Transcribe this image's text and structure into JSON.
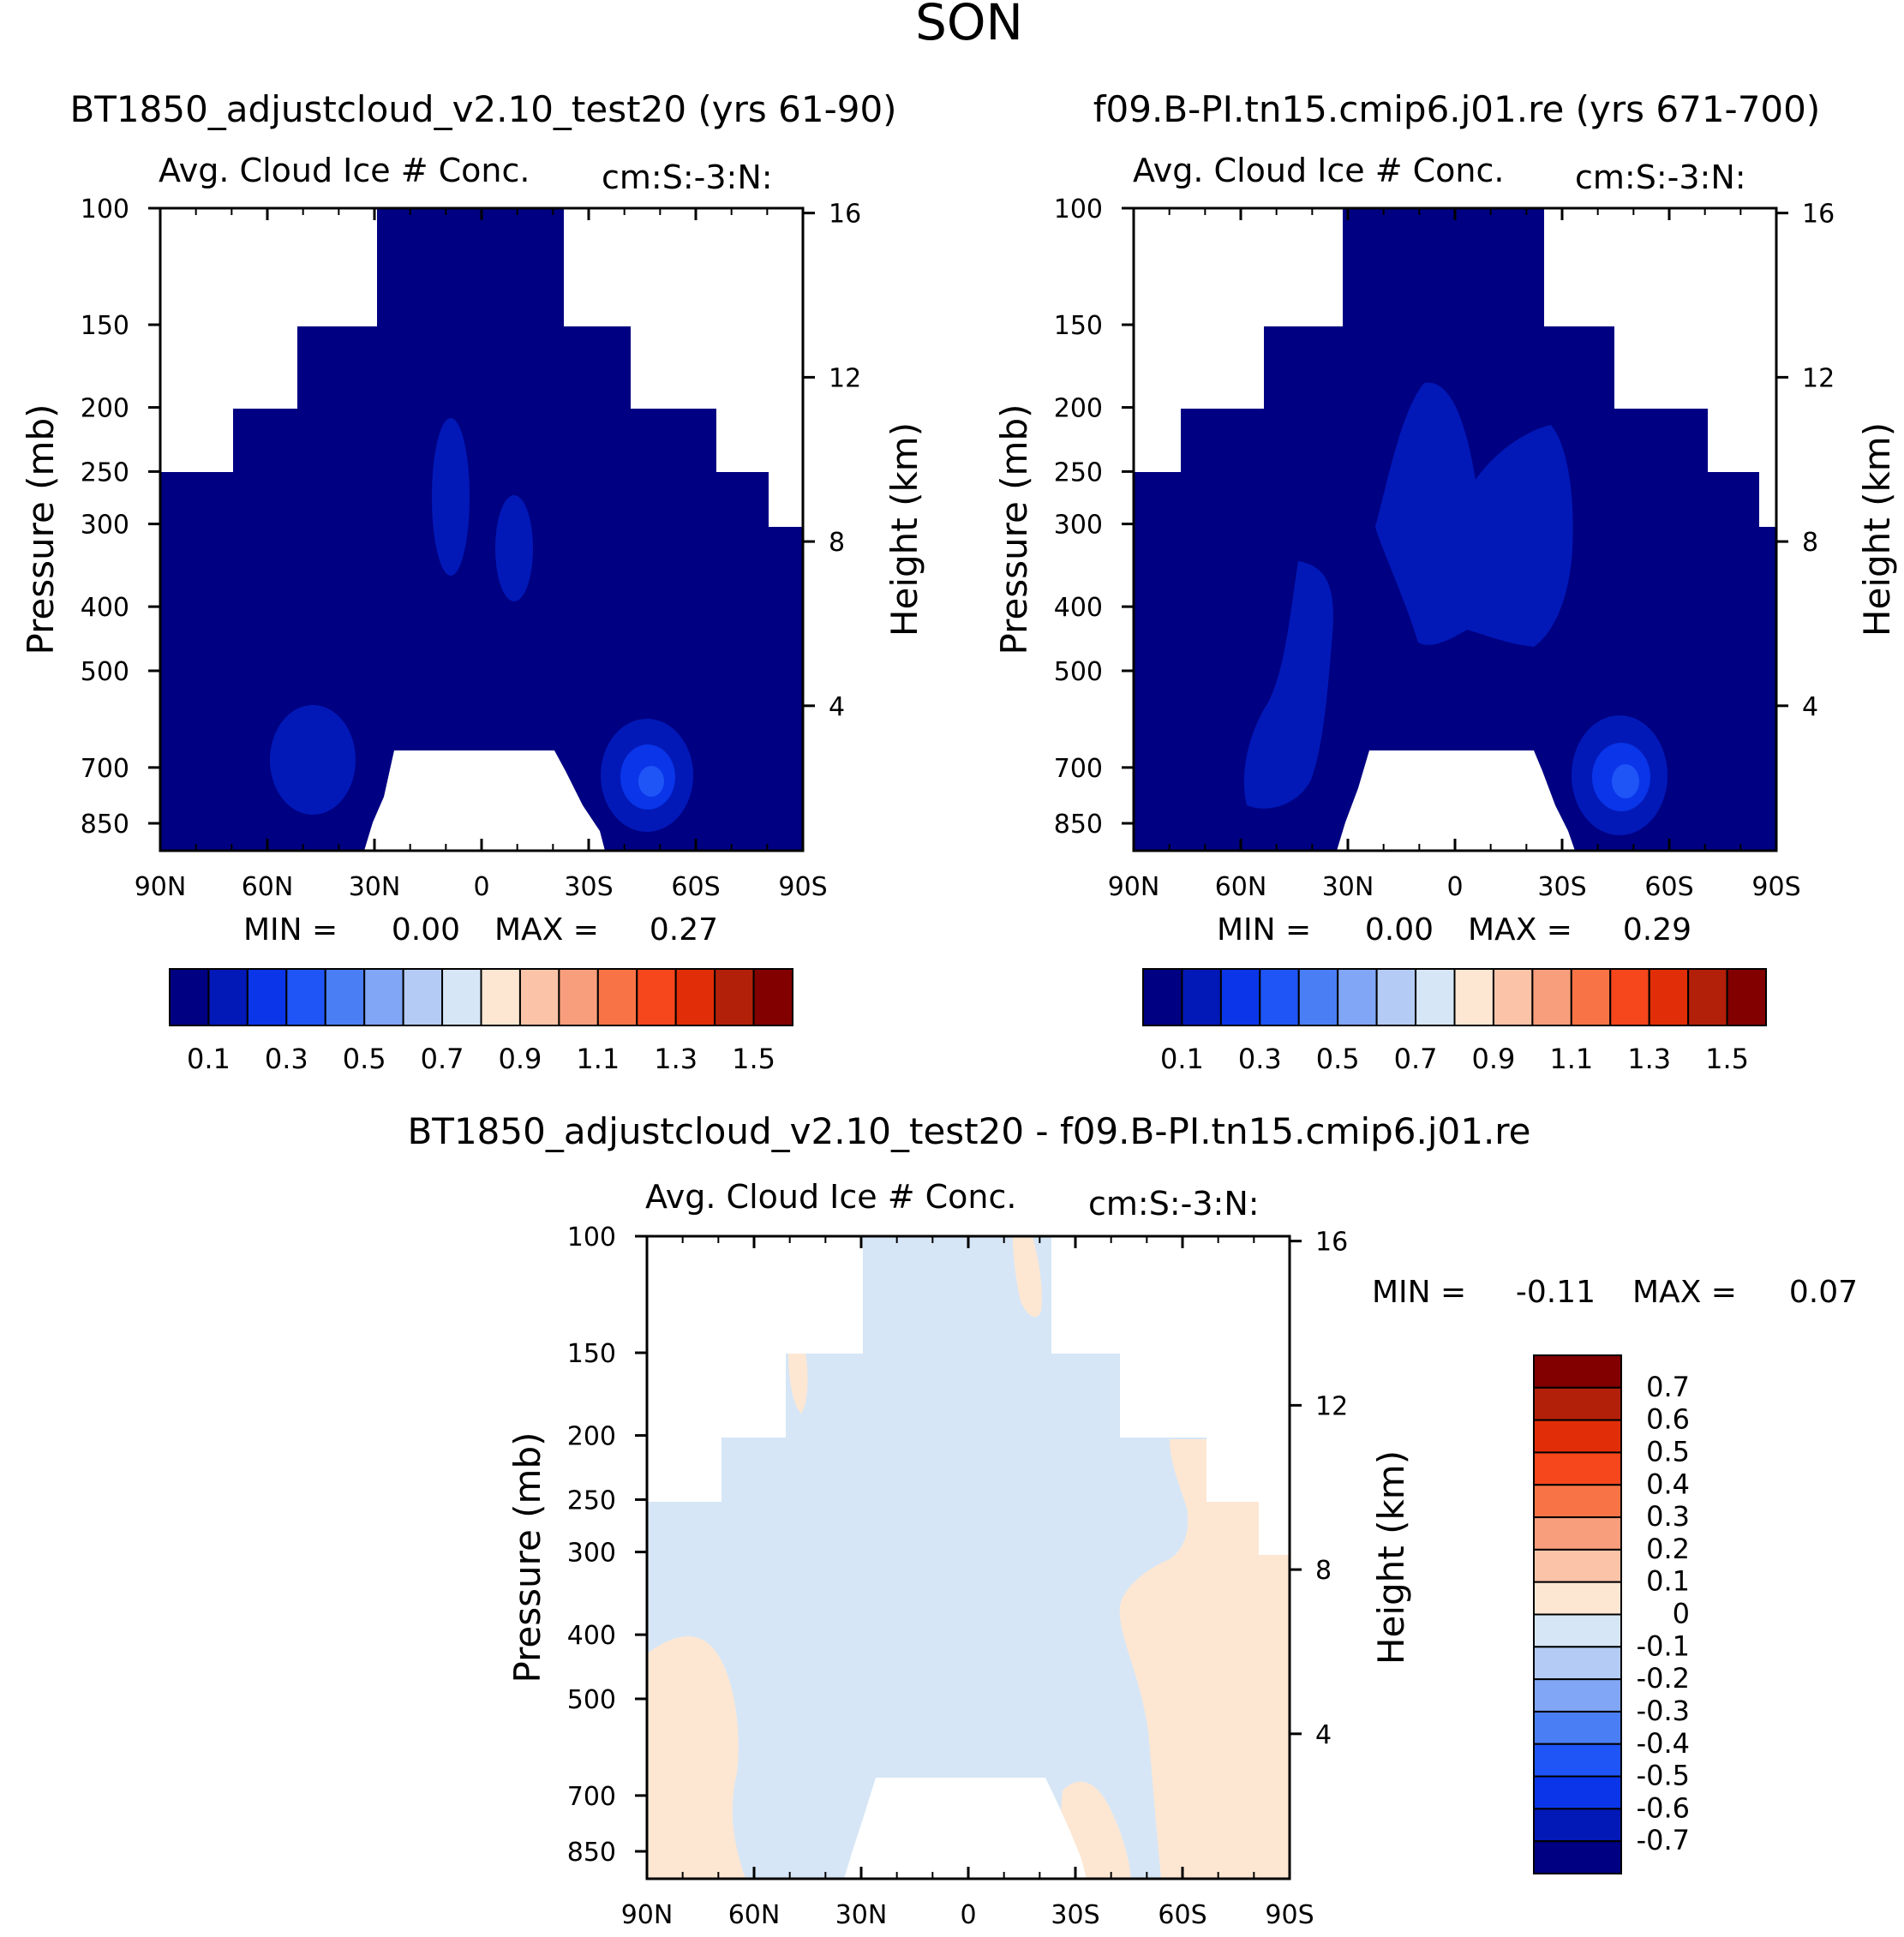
{
  "figure_title": "SON",
  "chart_data": [
    {
      "type": "contour",
      "panel": "top-left",
      "case_title": "BT1850_adjustcloud_v2.10_test20 (yrs 61-90)",
      "variable_label": "Avg. Cloud Ice # Conc.",
      "units_label": "cm:S:-3:N:",
      "ylabel": "Pressure (mb)",
      "y2label": "Height (km)",
      "x_ticks": [
        "90N",
        "60N",
        "30N",
        "0",
        "30S",
        "60S",
        "90S"
      ],
      "y_ticks": [
        "100",
        "150",
        "200",
        "250",
        "300",
        "400",
        "500",
        "700",
        "850"
      ],
      "y2_ticks": [
        "16",
        "12",
        "8",
        "4"
      ],
      "min_label": "MIN =",
      "min_value": "0.00",
      "max_label": "MAX =",
      "max_value": "0.27",
      "colorbar_labels": [
        "0.1",
        "0.3",
        "0.5",
        "0.7",
        "0.9",
        "1.1",
        "1.3",
        "1.5"
      ],
      "colorbar_levels": [
        0.1,
        0.2,
        0.3,
        0.4,
        0.5,
        0.6,
        0.7,
        0.8,
        0.9,
        1.0,
        1.1,
        1.2,
        1.3,
        1.4,
        1.5
      ],
      "field_range": [
        0.0,
        0.27
      ]
    },
    {
      "type": "contour",
      "panel": "top-right",
      "case_title": "f09.B-PI.tn15.cmip6.j01.re (yrs 671-700)",
      "variable_label": "Avg. Cloud Ice # Conc.",
      "units_label": "cm:S:-3:N:",
      "ylabel": "Pressure (mb)",
      "y2label": "Height (km)",
      "x_ticks": [
        "90N",
        "60N",
        "30N",
        "0",
        "30S",
        "60S",
        "90S"
      ],
      "y_ticks": [
        "100",
        "150",
        "200",
        "250",
        "300",
        "400",
        "500",
        "700",
        "850"
      ],
      "y2_ticks": [
        "16",
        "12",
        "8",
        "4"
      ],
      "min_label": "MIN =",
      "min_value": "0.00",
      "max_label": "MAX =",
      "max_value": "0.29",
      "colorbar_labels": [
        "0.1",
        "0.3",
        "0.5",
        "0.7",
        "0.9",
        "1.1",
        "1.3",
        "1.5"
      ],
      "colorbar_levels": [
        0.1,
        0.2,
        0.3,
        0.4,
        0.5,
        0.6,
        0.7,
        0.8,
        0.9,
        1.0,
        1.1,
        1.2,
        1.3,
        1.4,
        1.5
      ],
      "field_range": [
        0.0,
        0.29
      ]
    },
    {
      "type": "contour",
      "panel": "bottom-difference",
      "case_title": "BT1850_adjustcloud_v2.10_test20 - f09.B-PI.tn15.cmip6.j01.re",
      "variable_label": "Avg. Cloud Ice # Conc.",
      "units_label": "cm:S:-3:N:",
      "ylabel": "Pressure (mb)",
      "y2label": "Height (km)",
      "x_ticks": [
        "90N",
        "60N",
        "30N",
        "0",
        "30S",
        "60S",
        "90S"
      ],
      "y_ticks": [
        "100",
        "150",
        "200",
        "250",
        "300",
        "400",
        "500",
        "700",
        "850"
      ],
      "y2_ticks": [
        "16",
        "12",
        "8",
        "4"
      ],
      "min_label": "MIN =",
      "min_value": "-0.11",
      "max_label": "MAX =",
      "max_value": "0.07",
      "colorbar_labels": [
        "0.7",
        "0.6",
        "0.5",
        "0.4",
        "0.3",
        "0.2",
        "0.1",
        "0",
        "-0.1",
        "-0.2",
        "-0.3",
        "-0.4",
        "-0.5",
        "-0.6",
        "-0.7"
      ],
      "colorbar_levels": [
        0.7,
        0.6,
        0.5,
        0.4,
        0.3,
        0.2,
        0.1,
        0,
        -0.1,
        -0.2,
        -0.3,
        -0.4,
        -0.5,
        -0.6,
        -0.7
      ],
      "field_range": [
        -0.11,
        0.07
      ]
    }
  ],
  "colors": {
    "colormap": [
      "#000082",
      "#0219b8",
      "#0a35e8",
      "#1f55f7",
      "#4a7ef5",
      "#80a6f5",
      "#b4cbf5",
      "#d6e6f6",
      "#fde7d3",
      "#fbc4a8",
      "#f99e7c",
      "#f87446",
      "#f5461c",
      "#e12e08",
      "#b3200a",
      "#820000"
    ],
    "field_dark": "#000082",
    "field_mid": "#0219b8",
    "field_high": "#0a35e8",
    "diff_neg": "#d6e6f6",
    "diff_pos": "#fde7d3",
    "missing": "#ffffff"
  }
}
